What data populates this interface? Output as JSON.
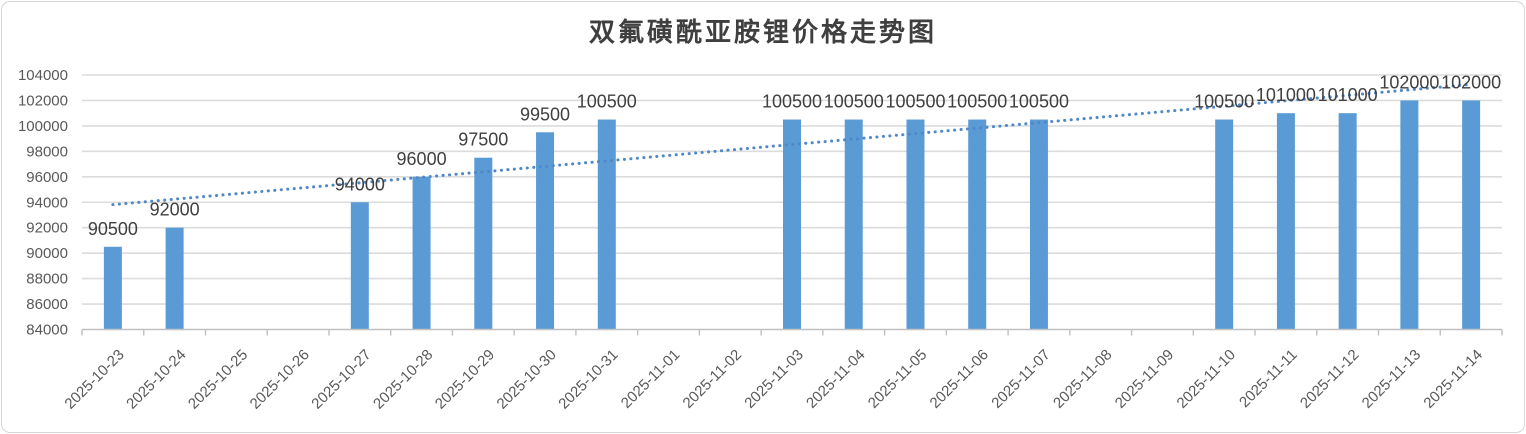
{
  "chart_data": {
    "type": "bar",
    "title": "双氟磺酰亚胺锂价格走势图",
    "categories": [
      "2025-10-23",
      "2025-10-24",
      "2025-10-25",
      "2025-10-26",
      "2025-10-27",
      "2025-10-28",
      "2025-10-29",
      "2025-10-30",
      "2025-10-31",
      "2025-11-01",
      "2025-11-02",
      "2025-11-03",
      "2025-11-04",
      "2025-11-05",
      "2025-11-06",
      "2025-11-07",
      "2025-11-08",
      "2025-11-09",
      "2025-11-10",
      "2025-11-11",
      "2025-11-12",
      "2025-11-13",
      "2025-11-14"
    ],
    "values": [
      90500,
      92000,
      null,
      null,
      94000,
      96000,
      97500,
      99500,
      100500,
      null,
      null,
      100500,
      100500,
      100500,
      100500,
      100500,
      null,
      null,
      100500,
      101000,
      101000,
      102000,
      102000
    ],
    "data_labels_visible": true,
    "xlabel": "",
    "ylabel": "",
    "ylim": [
      84000,
      104000
    ],
    "ytick_step": 2000,
    "grid": "horizontal",
    "legend": "none",
    "trendline": {
      "type": "linear",
      "style": "dotted"
    }
  },
  "style": {
    "bar_color": "#5B9BD5",
    "trendline_color": "#4F87C8",
    "gridline_color": "#DCDCDC",
    "axis_line_color": "#C0C0C0",
    "tick_label_color": "#595959",
    "data_label_color": "#404040",
    "title_color": "#3F3F3F",
    "frame_border_color": "#D6D6D6",
    "background_color": "#FFFFFF"
  }
}
